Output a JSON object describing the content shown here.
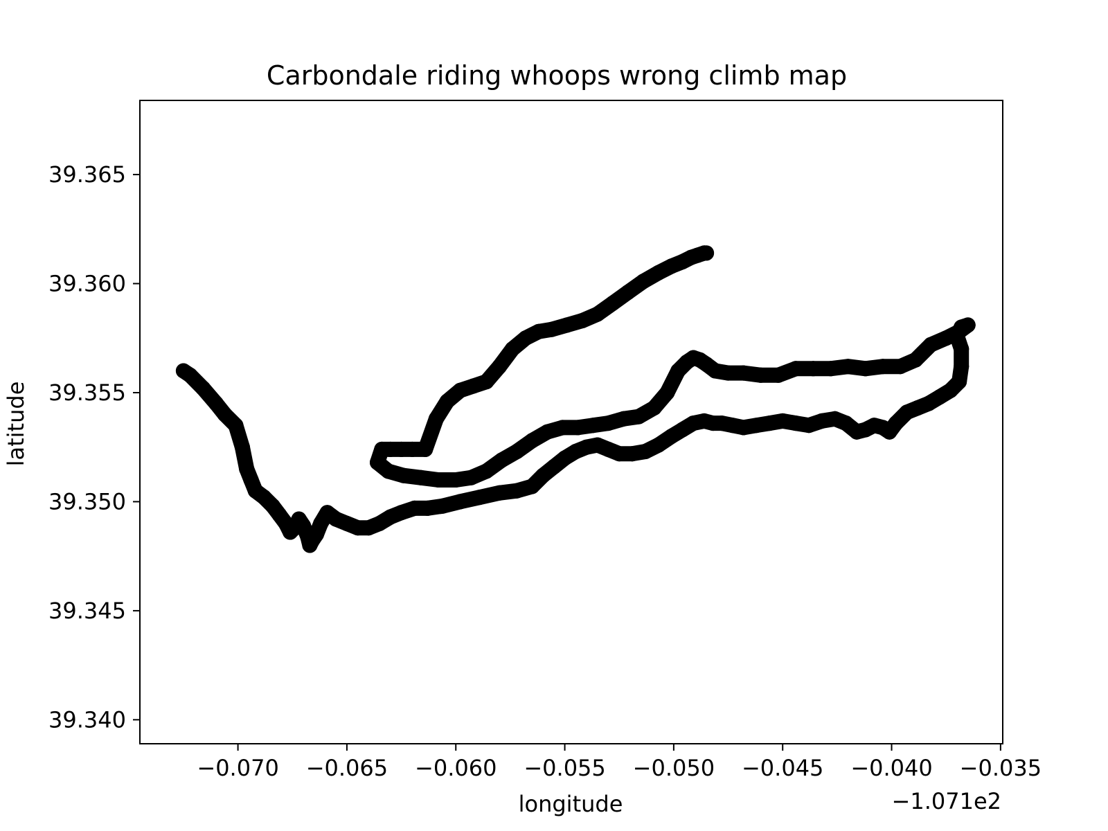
{
  "chart_data": {
    "type": "scatter",
    "title": "Carbondale riding whoops wrong climb map",
    "xlabel": "longitude",
    "ylabel": "latitude",
    "offset_label": "−1.071e2",
    "offset_value": -107.1,
    "xlim": [
      -0.0745,
      -0.0349
    ],
    "ylim": [
      39.3389,
      39.3684
    ],
    "xticks": [
      -0.07,
      -0.065,
      -0.06,
      -0.055,
      -0.05,
      -0.045,
      -0.04,
      -0.035
    ],
    "xtick_labels": [
      "−0.070",
      "−0.065",
      "−0.060",
      "−0.055",
      "−0.050",
      "−0.045",
      "−0.040",
      "−0.035"
    ],
    "yticks": [
      39.34,
      39.345,
      39.35,
      39.355,
      39.36,
      39.365
    ],
    "ytick_labels": [
      "39.340",
      "39.345",
      "39.350",
      "39.355",
      "39.360",
      "39.365"
    ],
    "grid": false,
    "marker_color": "#000000",
    "series": [
      {
        "x": [
          -0.0725,
          -0.0722,
          -0.0716,
          -0.071,
          -0.0706,
          -0.0701,
          -0.0698,
          -0.0696,
          -0.0694,
          -0.0692,
          -0.0688,
          -0.0684,
          -0.0681,
          -0.0678,
          -0.0676,
          -0.0674,
          -0.0672,
          -0.067,
          -0.0668,
          -0.0667,
          -0.0666,
          -0.0664,
          -0.0662,
          -0.0659,
          -0.0655,
          -0.065,
          -0.0645,
          -0.064,
          -0.0635,
          -0.063,
          -0.0625,
          -0.0619,
          -0.0613,
          -0.0606,
          -0.0598,
          -0.0589,
          -0.058,
          -0.0572,
          -0.0565,
          -0.056,
          -0.0555,
          -0.055,
          -0.0545,
          -0.054,
          -0.0535,
          -0.053,
          -0.0525,
          -0.0519,
          -0.0513,
          -0.0507,
          -0.0501,
          -0.0496,
          -0.0491,
          -0.0486,
          -0.0482,
          -0.0478,
          -0.0473,
          -0.0468,
          -0.0462,
          -0.0456,
          -0.045,
          -0.0444,
          -0.0438,
          -0.0432,
          -0.0426,
          -0.0421,
          -0.0416,
          -0.0412,
          -0.0408,
          -0.0404,
          -0.0401,
          -0.0398,
          -0.0393,
          -0.0388,
          -0.0383,
          -0.0378,
          -0.0373,
          -0.0369,
          -0.0368,
          -0.0368,
          -0.037,
          -0.0368,
          -0.0365,
          -0.0369,
          -0.0375,
          -0.0382,
          -0.0389,
          -0.0396,
          -0.0404,
          -0.0412,
          -0.042,
          -0.0428,
          -0.0436,
          -0.0444,
          -0.0452,
          -0.046,
          -0.0468,
          -0.0475,
          -0.0481,
          -0.0485,
          -0.0488,
          -0.0491,
          -0.0494,
          -0.0498,
          -0.0503,
          -0.0509,
          -0.0516,
          -0.0523,
          -0.053,
          -0.0537,
          -0.0544,
          -0.0551,
          -0.0558,
          -0.0565,
          -0.0572,
          -0.0579,
          -0.0586,
          -0.0593,
          -0.06,
          -0.0608,
          -0.0616,
          -0.0624,
          -0.0631,
          -0.0636,
          -0.0634,
          -0.063,
          -0.0625,
          -0.062,
          -0.0614,
          -0.0609,
          -0.0604,
          -0.0598,
          -0.0592,
          -0.0586,
          -0.058,
          -0.0574,
          -0.0568,
          -0.0562,
          -0.0556,
          -0.0549,
          -0.0542,
          -0.0535,
          -0.0528,
          -0.0521,
          -0.0514,
          -0.0507,
          -0.0501,
          -0.0496,
          -0.0492,
          -0.0489,
          -0.0486,
          -0.0485
        ],
        "y": [
          39.356,
          39.3558,
          39.3552,
          39.3545,
          39.354,
          39.3535,
          39.3525,
          39.3515,
          39.351,
          39.3505,
          39.3502,
          39.3498,
          39.3494,
          39.349,
          39.3486,
          39.3488,
          39.3492,
          39.3489,
          39.3484,
          39.348,
          39.3482,
          39.3485,
          39.349,
          39.3495,
          39.3492,
          39.349,
          39.3488,
          39.3488,
          39.349,
          39.3493,
          39.3495,
          39.3497,
          39.3497,
          39.3498,
          39.35,
          39.3502,
          39.3504,
          39.3505,
          39.3507,
          39.3512,
          39.3516,
          39.352,
          39.3523,
          39.3525,
          39.3526,
          39.3524,
          39.3522,
          39.3522,
          39.3523,
          39.3526,
          39.353,
          39.3533,
          39.3536,
          39.3537,
          39.3536,
          39.3536,
          39.3535,
          39.3534,
          39.3535,
          39.3536,
          39.3537,
          39.3536,
          39.3535,
          39.3537,
          39.3538,
          39.3536,
          39.3532,
          39.3533,
          39.3535,
          39.3534,
          39.3532,
          39.3536,
          39.3541,
          39.3543,
          39.3545,
          39.3548,
          39.3551,
          39.3555,
          39.3562,
          39.357,
          39.3576,
          39.358,
          39.3581,
          39.3578,
          39.3575,
          39.3572,
          39.3565,
          39.3562,
          39.3562,
          39.3561,
          39.3562,
          39.3561,
          39.3561,
          39.3561,
          39.3558,
          39.3558,
          39.3559,
          39.3559,
          39.356,
          39.3563,
          39.3565,
          39.3566,
          39.3564,
          39.356,
          39.355,
          39.3543,
          39.3539,
          39.3538,
          39.3536,
          39.3535,
          39.3534,
          39.3534,
          39.3532,
          39.3528,
          39.3523,
          39.3519,
          39.3514,
          39.3511,
          39.351,
          39.351,
          39.3511,
          39.3512,
          39.3514,
          39.3518,
          39.3524,
          39.3524,
          39.3524,
          39.3524,
          39.3524,
          39.3538,
          39.3546,
          39.3551,
          39.3553,
          39.3555,
          39.3562,
          39.357,
          39.3575,
          39.3578,
          39.3579,
          39.3581,
          39.3583,
          39.3586,
          39.3591,
          39.3596,
          39.3601,
          39.3605,
          39.3608,
          39.361,
          39.3612,
          39.3613,
          39.3614,
          39.3614
        ]
      }
    ]
  }
}
